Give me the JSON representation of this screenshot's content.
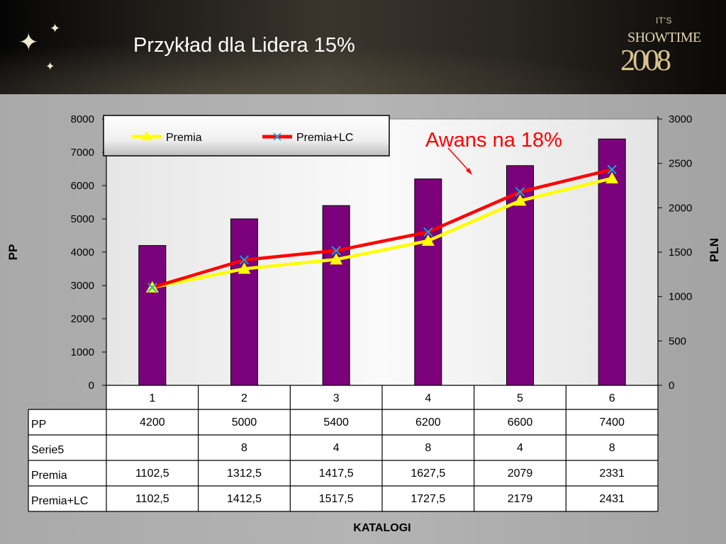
{
  "slide": {
    "title": "Przykład dla Lidera 15%"
  },
  "logo": {
    "line1": "IT'S",
    "line2": "SHOWTIME",
    "line3": "2008"
  },
  "annotation": "Awans na 18%",
  "chart_data": {
    "type": "bar",
    "categories": [
      "1",
      "2",
      "3",
      "4",
      "5",
      "6"
    ],
    "series": [
      {
        "name": "PP",
        "kind": "bar",
        "axis": "left",
        "color": "#7b007b",
        "values": [
          4200,
          5000,
          5400,
          6200,
          6600,
          7400
        ]
      },
      {
        "name": "Premia",
        "kind": "line",
        "axis": "right",
        "color": "#ffff00",
        "marker": "triangle",
        "values": [
          1102.5,
          1312.5,
          1417.5,
          1627.5,
          2079,
          2331
        ]
      },
      {
        "name": "Premia+LC",
        "kind": "line",
        "axis": "right",
        "color": "#ff0000",
        "marker": "x",
        "values": [
          1102.5,
          1412.5,
          1517.5,
          1727.5,
          2179,
          2431
        ]
      }
    ],
    "ylabel_left": "PP",
    "ylabel_right": "PLN",
    "xlabel": "KATALOGI",
    "ylim_left": [
      0,
      8000
    ],
    "ylim_right": [
      0,
      3000
    ],
    "yticks_left": [
      "0",
      "1000",
      "2000",
      "3000",
      "4000",
      "5000",
      "6000",
      "7000",
      "8000"
    ],
    "yticks_right": [
      "0",
      "500",
      "1000",
      "1500",
      "2000",
      "2500",
      "3000"
    ],
    "legend": [
      "Premia",
      "Premia+LC"
    ],
    "legend_position": "top-left",
    "grid": false,
    "table": {
      "rows": [
        {
          "label": "PP",
          "cells": [
            "4200",
            "5000",
            "5400",
            "6200",
            "6600",
            "7400"
          ]
        },
        {
          "label": "Serie5",
          "cells": [
            "",
            "8",
            "4",
            "8",
            "4",
            "8"
          ]
        },
        {
          "label": "Premia",
          "cells": [
            "1102,5",
            "1312,5",
            "1417,5",
            "1627,5",
            "2079",
            "2331"
          ]
        },
        {
          "label": "Premia+LC",
          "cells": [
            "1102,5",
            "1412,5",
            "1517,5",
            "1727,5",
            "2179",
            "2431"
          ]
        }
      ]
    }
  }
}
